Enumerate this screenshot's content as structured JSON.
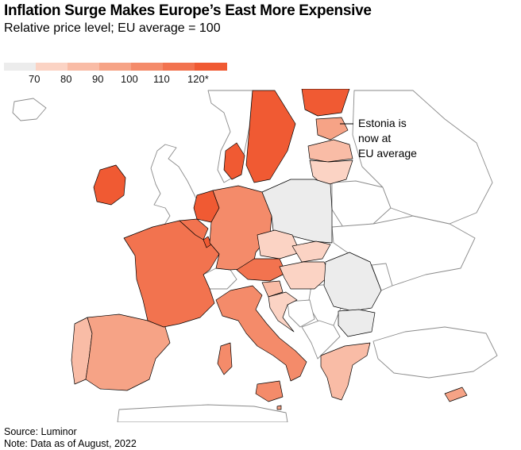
{
  "header": {
    "title": "Inflation Surge Makes Europe’s East More Expensive",
    "subtitle": "Relative price level; EU average = 100"
  },
  "legend": {
    "bins": [
      {
        "color": "#ececec"
      },
      {
        "label": "70",
        "color": "#fbd3c4"
      },
      {
        "label": "80",
        "color": "#f9bca6"
      },
      {
        "label": "90",
        "color": "#f6a386"
      },
      {
        "label": "100",
        "color": "#f48b6a"
      },
      {
        "label": "110",
        "color": "#f2734f"
      },
      {
        "label": "120*",
        "color": "#f05a33"
      }
    ]
  },
  "map": {
    "colors": {
      "border": "#000000",
      "land_outline": "#8a8a8a",
      "no_data": "#ffffff"
    },
    "countries": [
      {
        "name": "Ireland",
        "bin": 6
      },
      {
        "name": "Netherlands",
        "bin": 6
      },
      {
        "name": "Denmark",
        "bin": 6
      },
      {
        "name": "Sweden",
        "bin": 6
      },
      {
        "name": "Finland",
        "bin": 6
      },
      {
        "name": "Luxembourg",
        "bin": 6
      },
      {
        "name": "France",
        "bin": 5
      },
      {
        "name": "Belgium",
        "bin": 5
      },
      {
        "name": "Austria",
        "bin": 5
      },
      {
        "name": "Germany",
        "bin": 4
      },
      {
        "name": "Italy",
        "bin": 4
      },
      {
        "name": "Estonia",
        "bin": 3
      },
      {
        "name": "Spain",
        "bin": 3
      },
      {
        "name": "Malta",
        "bin": 3
      },
      {
        "name": "Cyprus",
        "bin": 3
      },
      {
        "name": "Portugal",
        "bin": 2
      },
      {
        "name": "Latvia",
        "bin": 2
      },
      {
        "name": "Slovenia",
        "bin": 2
      },
      {
        "name": "Greece",
        "bin": 2
      },
      {
        "name": "Lithuania",
        "bin": 1
      },
      {
        "name": "Czech Republic",
        "bin": 1
      },
      {
        "name": "Slovakia",
        "bin": 1
      },
      {
        "name": "Hungary",
        "bin": 1
      },
      {
        "name": "Croatia",
        "bin": 1
      },
      {
        "name": "Poland",
        "bin": 0
      },
      {
        "name": "Romania",
        "bin": 0
      },
      {
        "name": "Bulgaria",
        "bin": 0
      }
    ]
  },
  "annotation": {
    "lines": [
      "Estonia is",
      "now at",
      "EU average"
    ]
  },
  "footer": {
    "source": "Source: Luminor",
    "note": "Note: Data as of August, 2022"
  }
}
